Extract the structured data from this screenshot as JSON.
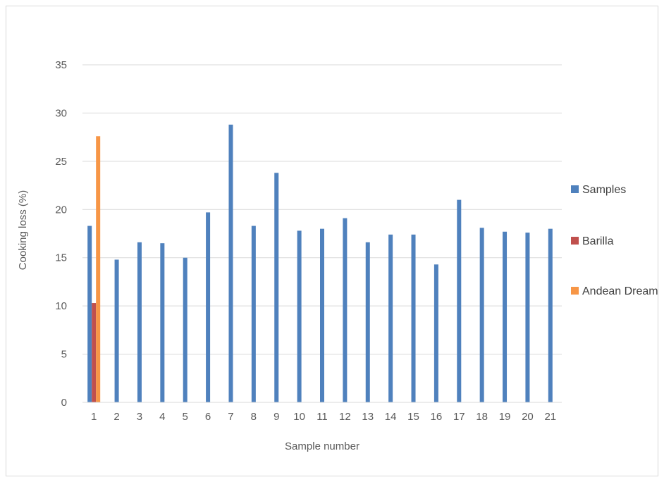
{
  "chart_data": {
    "type": "bar",
    "xlabel": "Sample number",
    "ylabel": "Cooking loss (%)",
    "ylim": [
      0,
      35
    ],
    "yticks": [
      0,
      5,
      10,
      15,
      20,
      25,
      30,
      35
    ],
    "grid": true,
    "legend_position": "right",
    "categories": [
      "1",
      "2",
      "3",
      "4",
      "5",
      "6",
      "7",
      "8",
      "9",
      "10",
      "11",
      "12",
      "13",
      "14",
      "15",
      "16",
      "17",
      "18",
      "19",
      "20",
      "21"
    ],
    "series": [
      {
        "name": "Samples",
        "color": "#4f81bd",
        "values": [
          18.3,
          14.8,
          16.6,
          16.5,
          15.0,
          19.7,
          28.8,
          18.3,
          23.8,
          17.8,
          18.0,
          19.1,
          16.6,
          17.4,
          17.4,
          14.3,
          21.0,
          18.1,
          17.7,
          17.6,
          18.0
        ]
      },
      {
        "name": "Barilla",
        "color": "#c0504d",
        "values": [
          10.3,
          null,
          null,
          null,
          null,
          null,
          null,
          null,
          null,
          null,
          null,
          null,
          null,
          null,
          null,
          null,
          null,
          null,
          null,
          null,
          null
        ]
      },
      {
        "name": "Andean Dream",
        "color": "#f79646",
        "values": [
          27.6,
          null,
          null,
          null,
          null,
          null,
          null,
          null,
          null,
          null,
          null,
          null,
          null,
          null,
          null,
          null,
          null,
          null,
          null,
          null,
          null
        ]
      }
    ]
  }
}
